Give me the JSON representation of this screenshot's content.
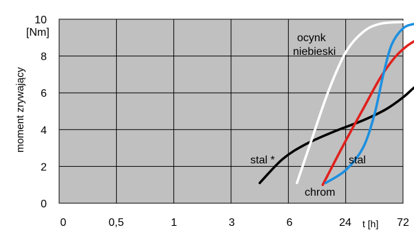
{
  "chart_data": {
    "type": "line",
    "ylabel": "moment zrywający",
    "yunit": "[Nm]",
    "xlabel": "t [h]",
    "x_categories": [
      "0",
      "0,5",
      "1",
      "3",
      "6",
      "24",
      "72"
    ],
    "ylim": [
      0,
      10
    ],
    "yticks": [
      0,
      2,
      4,
      6,
      8,
      10
    ],
    "grid": true,
    "plot_background": "#c0c0c0",
    "series": [
      {
        "name": "stal *",
        "color": "#000000",
        "points": [
          [
            3.5,
            1.1
          ],
          [
            3.9,
            2.4
          ],
          [
            4.3,
            3.2
          ],
          [
            4.8,
            3.9
          ],
          [
            5.3,
            4.5
          ],
          [
            5.7,
            5.1
          ],
          [
            6.0,
            5.75
          ],
          [
            6.2,
            6.3
          ],
          [
            6.33,
            6.55
          ],
          [
            6.45,
            7.0
          ]
        ]
      },
      {
        "name": "ocynk niebieski",
        "color": "#ffffff",
        "points": [
          [
            4.15,
            1.1
          ],
          [
            4.4,
            3.4
          ],
          [
            4.7,
            6.1
          ],
          [
            5.0,
            8.2
          ],
          [
            5.3,
            9.3
          ],
          [
            5.6,
            9.75
          ],
          [
            6.0,
            9.85
          ],
          [
            6.3,
            9.9
          ]
        ]
      },
      {
        "name": "chrom",
        "color": "#e0201c",
        "points": [
          [
            4.6,
            1.0
          ],
          [
            4.95,
            3.1
          ],
          [
            5.3,
            5.1
          ],
          [
            5.6,
            6.8
          ],
          [
            5.85,
            7.9
          ],
          [
            6.05,
            8.5
          ],
          [
            6.25,
            8.9
          ],
          [
            6.33,
            9.0
          ]
        ]
      },
      {
        "name": "stal",
        "color": "#1c8fe0",
        "points": [
          [
            4.65,
            1.1
          ],
          [
            5.0,
            1.8
          ],
          [
            5.3,
            3.0
          ],
          [
            5.5,
            4.8
          ],
          [
            5.65,
            6.9
          ],
          [
            5.8,
            8.6
          ],
          [
            6.0,
            9.5
          ],
          [
            6.2,
            9.75
          ],
          [
            6.33,
            9.8
          ]
        ]
      }
    ],
    "labels": [
      {
        "text": "ocynk",
        "series": "ocynk niebieski"
      },
      {
        "text": "niebieski",
        "series": "ocynk niebieski"
      },
      {
        "text": "stal *",
        "series": "stal *"
      },
      {
        "text": "stal",
        "series": "stal"
      },
      {
        "text": "chrom",
        "series": "chrom"
      }
    ]
  }
}
